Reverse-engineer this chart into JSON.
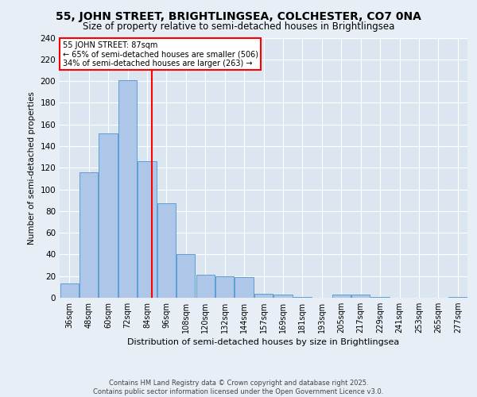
{
  "title1": "55, JOHN STREET, BRIGHTLINGSEA, COLCHESTER, CO7 0NA",
  "title2": "Size of property relative to semi-detached houses in Brightlingsea",
  "xlabel": "Distribution of semi-detached houses by size in Brightlingsea",
  "ylabel": "Number of semi-detached properties",
  "footer": "Contains HM Land Registry data © Crown copyright and database right 2025.\nContains public sector information licensed under the Open Government Licence v3.0.",
  "bin_labels": [
    "36sqm",
    "48sqm",
    "60sqm",
    "72sqm",
    "84sqm",
    "96sqm",
    "108sqm",
    "120sqm",
    "132sqm",
    "144sqm",
    "157sqm",
    "169sqm",
    "181sqm",
    "193sqm",
    "205sqm",
    "217sqm",
    "229sqm",
    "241sqm",
    "253sqm",
    "265sqm",
    "277sqm"
  ],
  "bar_values": [
    13,
    116,
    152,
    201,
    126,
    87,
    40,
    21,
    20,
    19,
    4,
    3,
    1,
    0,
    3,
    3,
    1,
    0,
    0,
    0,
    1
  ],
  "bar_color": "#aec6e8",
  "bar_edge_color": "#5a9fd4",
  "vline_color": "red",
  "annotation_title": "55 JOHN STREET: 87sqm",
  "annotation_line1": "← 65% of semi-detached houses are smaller (506)",
  "annotation_line2": "34% of semi-detached houses are larger (263) →",
  "ylim": [
    0,
    240
  ],
  "yticks": [
    0,
    20,
    40,
    60,
    80,
    100,
    120,
    140,
    160,
    180,
    200,
    220,
    240
  ],
  "background_color": "#e8eef5",
  "plot_bg_color": "#dce6f0"
}
